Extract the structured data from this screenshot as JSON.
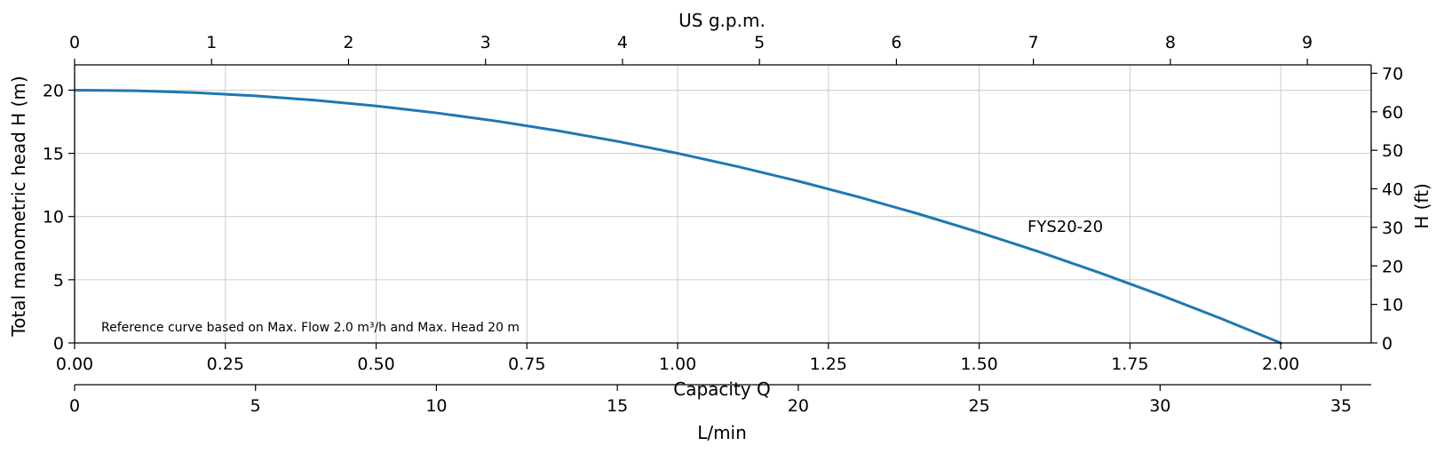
{
  "chart_data": {
    "type": "line",
    "xlabel": "Capacity Q",
    "ylabel": "Total manometric head H (m)",
    "xlim": [
      0,
      2.15
    ],
    "ylim": [
      0,
      22
    ],
    "x_ticks": [
      "0.00",
      "0.25",
      "0.50",
      "0.75",
      "1.00",
      "1.25",
      "1.50",
      "1.75",
      "2.00"
    ],
    "y_ticks": [
      "0",
      "5",
      "10",
      "15",
      "20"
    ],
    "grid": true,
    "secondary_x_top": {
      "label": "US g.p.m.",
      "ticks": [
        "0",
        "1",
        "2",
        "3",
        "4",
        "5",
        "6",
        "7",
        "8",
        "9"
      ]
    },
    "secondary_x_bottom": {
      "label": "L/min",
      "ticks": [
        "0",
        "5",
        "10",
        "15",
        "20",
        "25",
        "30",
        "35"
      ]
    },
    "secondary_y_right": {
      "label": "H (ft)",
      "ticks": [
        "0",
        "10",
        "20",
        "30",
        "40",
        "50",
        "60",
        "70"
      ]
    },
    "series": [
      {
        "name": "FYS20-20",
        "color": "#1f77b4",
        "x": [
          0,
          0.1,
          0.2,
          0.3,
          0.4,
          0.5,
          0.6,
          0.7,
          0.8,
          0.9,
          1.0,
          1.1,
          1.2,
          1.3,
          1.4,
          1.5,
          1.6,
          1.7,
          1.8,
          1.9,
          2.0
        ],
        "y": [
          20,
          19.95,
          19.8,
          19.55,
          19.2,
          18.75,
          18.2,
          17.55,
          16.8,
          15.95,
          15,
          13.95,
          12.8,
          11.55,
          10.2,
          8.75,
          7.2,
          5.55,
          3.8,
          1.95,
          0
        ]
      }
    ],
    "annotations": [
      "Reference curve based on Max. Flow 2.0 m³/h and Max. Head 20 m"
    ]
  }
}
